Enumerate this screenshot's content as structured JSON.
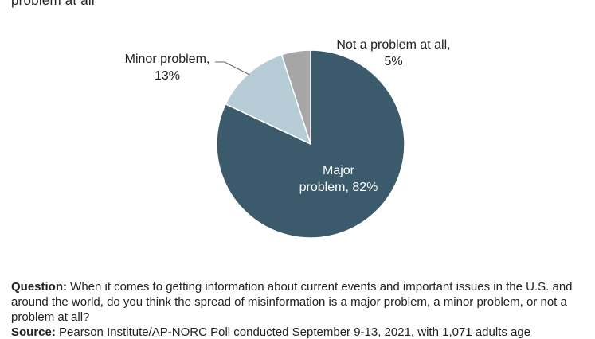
{
  "title_fragment": "problem at all",
  "chart_data": {
    "type": "pie",
    "title": "",
    "start_angle_deg": 0,
    "direction": "clockwise",
    "slices": [
      {
        "label_line1": "Major",
        "label_line2": "problem, 82%",
        "category": "Major problem",
        "value": 82,
        "color": "#3b5a6b"
      },
      {
        "label_line1": "Minor problem,",
        "label_line2": "13%",
        "category": "Minor problem",
        "value": 13,
        "color": "#b6cdd8"
      },
      {
        "label_line1": "Not a problem at all,",
        "label_line2": "5%",
        "category": "Not a problem at all",
        "value": 5,
        "color": "#a6a6a6"
      }
    ]
  },
  "footnote": {
    "question_label": "Question:",
    "question_text": " When it comes to getting information about current events and important issues in the U.S. and around the world, do you think the spread of misinformation is a major problem, a minor problem, or not a problem at all?",
    "source_label": "Source:",
    "source_text": " Pearson Institute/AP-NORC Poll conducted September 9-13, 2021, with 1,071 adults age"
  }
}
